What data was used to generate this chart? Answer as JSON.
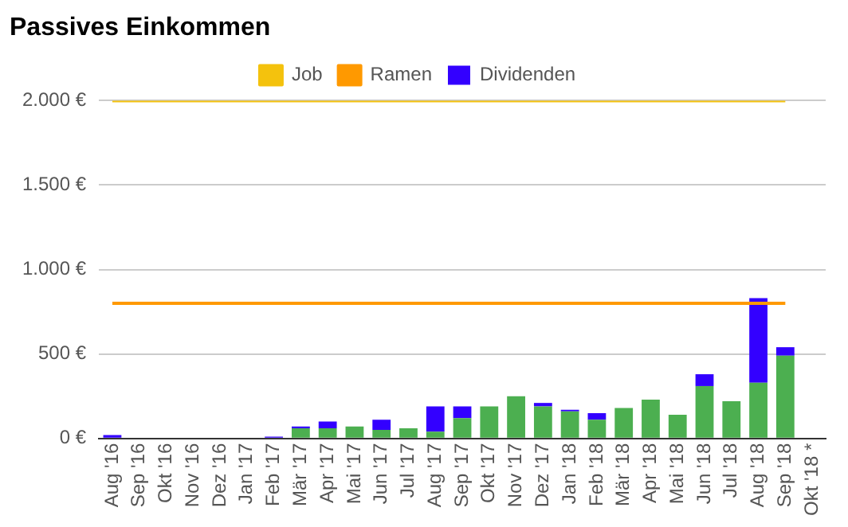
{
  "chart_data": {
    "type": "bar",
    "title": "Passives Einkommen",
    "stacked": true,
    "legend": "top",
    "grid": "y",
    "marker": "none",
    "line_style": "solid",
    "categories": [
      "Aug '16",
      "Sep '16",
      "Okt '16",
      "Nov '16",
      "Dez '16",
      "Jan '17",
      "Feb '17",
      "Mär '17",
      "Apr '17",
      "Mai '17",
      "Jun '17",
      "Jul '17",
      "Aug '17",
      "Sep '17",
      "Okt '17",
      "Nov '17",
      "Dez '17",
      "Jan '18",
      "Feb '18",
      "Mär '18",
      "Apr '18",
      "Mai '18",
      "Jun '18",
      "Jul '18",
      "Aug '18",
      "Sep '18",
      "Okt '18 *"
    ],
    "ylim": [
      0,
      2000
    ],
    "yticks": [
      {
        "value": 0,
        "label": "0 €"
      },
      {
        "value": 500,
        "label": "500 €"
      },
      {
        "value": 1000,
        "label": "1.000 €"
      },
      {
        "value": 1500,
        "label": "1.500 €"
      },
      {
        "value": 2000,
        "label": "2.000 €"
      }
    ],
    "series": [
      {
        "name": "Job",
        "type": "line",
        "color": "#f4c20d",
        "values": [
          2000,
          2000,
          2000,
          2000,
          2000,
          2000,
          2000,
          2000,
          2000,
          2000,
          2000,
          2000,
          2000,
          2000,
          2000,
          2000,
          2000,
          2000,
          2000,
          2000,
          2000,
          2000,
          2000,
          2000,
          2000,
          2000,
          null
        ]
      },
      {
        "name": "Ramen",
        "type": "line",
        "color": "#ff9900",
        "values": [
          800,
          800,
          800,
          800,
          800,
          800,
          800,
          800,
          800,
          800,
          800,
          800,
          800,
          800,
          800,
          800,
          800,
          800,
          800,
          800,
          800,
          800,
          800,
          800,
          800,
          800,
          null
        ]
      },
      {
        "color": "#4caf50",
        "values": [
          0,
          0,
          0,
          0,
          0,
          0,
          0,
          60,
          60,
          70,
          50,
          60,
          40,
          120,
          190,
          250,
          190,
          160,
          110,
          180,
          230,
          140,
          310,
          220,
          330,
          490,
          null
        ]
      },
      {
        "name": "Dividenden",
        "color": "#3300ff",
        "values": [
          20,
          5,
          0,
          0,
          5,
          0,
          10,
          10,
          40,
          0,
          60,
          0,
          150,
          70,
          0,
          0,
          20,
          10,
          40,
          0,
          0,
          0,
          70,
          0,
          500,
          50,
          null
        ]
      }
    ]
  }
}
